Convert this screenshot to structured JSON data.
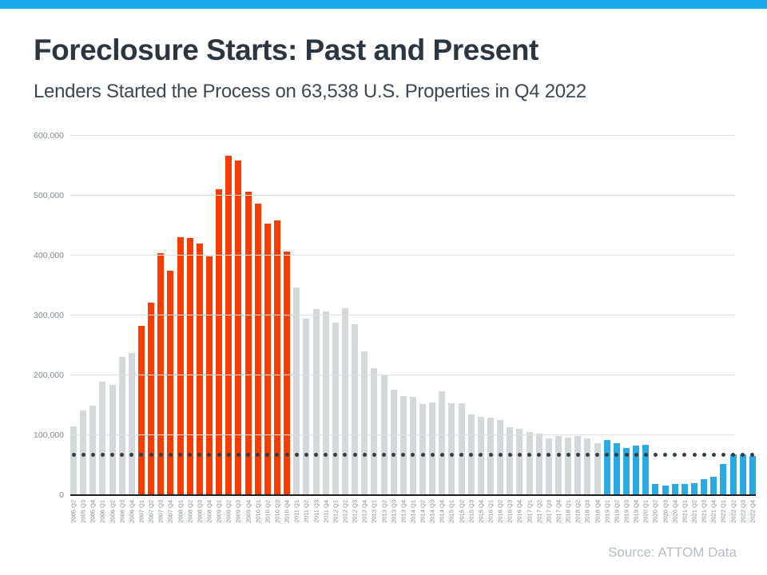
{
  "banner": {
    "color": "#17aae8"
  },
  "header": {
    "title": "Foreclosure Starts: Past and Present",
    "subtitle": "Lenders Started the Process on 63,538 U.S. Properties in Q4 2022"
  },
  "footer": {
    "source": "Source: ATTOM Data"
  },
  "chart_data": {
    "type": "bar",
    "title": "Foreclosure Starts: Past and Present",
    "xlabel": "",
    "ylabel": "",
    "ylim": [
      0,
      600000
    ],
    "grid": true,
    "legend": false,
    "y_ticks": [
      "0",
      "100,000",
      "200,000",
      "300,000",
      "400,000",
      "500,000",
      "600,000"
    ],
    "categories": [
      "2005 Q2",
      "2005 Q3",
      "2005 Q4",
      "2006 Q1",
      "2006 Q2",
      "2006 Q3",
      "2006 Q4",
      "2007 Q1",
      "2007 Q2",
      "2007 Q3",
      "2007 Q4",
      "2008 Q1",
      "2008 Q2",
      "2008 Q3",
      "2008 Q4",
      "2009 Q1",
      "2009 Q2",
      "2009 Q3",
      "2009 Q4",
      "2010 Q1",
      "2010 Q2",
      "2010 Q3",
      "2010 Q4",
      "2011 Q1",
      "2011 Q2",
      "2011 Q3",
      "2011 Q4",
      "2012 Q1",
      "2012 Q2",
      "2012 Q3",
      "2012 Q4",
      "2013 Q1",
      "2013 Q2",
      "2013 Q3",
      "2013 Q4",
      "2014 Q1",
      "2014 Q2",
      "2014 Q3",
      "2014 Q4",
      "2015 Q1",
      "2015 Q2",
      "2015 Q3",
      "2015 Q4",
      "2016 Q1",
      "2016 Q2",
      "2016 Q3",
      "2016 Q4",
      "2017 Q1",
      "2017 Q2",
      "2017 Q3",
      "2017 Q4",
      "2018 Q1",
      "2018 Q2",
      "2018 Q3",
      "2018 Q4",
      "2019 Q1",
      "2019 Q2",
      "2019 Q3",
      "2019 Q4",
      "2020 Q1",
      "2020 Q2",
      "2020 Q3",
      "2020 Q4",
      "2021 Q1",
      "2021 Q2",
      "2021 Q3",
      "2021 Q4",
      "2022 Q1",
      "2022 Q2",
      "2022 Q3",
      "2022 Q4"
    ],
    "values": [
      113000,
      140000,
      148000,
      188000,
      183000,
      229000,
      236000,
      282000,
      320000,
      403000,
      373000,
      430000,
      428000,
      419000,
      397000,
      510000,
      566000,
      558000,
      506000,
      486000,
      452000,
      457000,
      405000,
      346000,
      294000,
      310000,
      305000,
      287000,
      311000,
      284000,
      239000,
      211000,
      200000,
      175000,
      164000,
      163000,
      151000,
      154000,
      172000,
      152000,
      152000,
      134000,
      130000,
      128000,
      124000,
      112000,
      110000,
      104000,
      101000,
      94000,
      97000,
      95000,
      98000,
      93000,
      86000,
      91000,
      85000,
      78000,
      81000,
      83000,
      18000,
      15000,
      17000,
      17000,
      19000,
      26000,
      29000,
      51000,
      67000,
      67000,
      63538
    ],
    "segments": [
      {
        "start": 0,
        "end": 6,
        "color": "gray"
      },
      {
        "start": 7,
        "end": 22,
        "color": "red"
      },
      {
        "start": 23,
        "end": 54,
        "color": "gray"
      },
      {
        "start": 55,
        "end": 70,
        "color": "blue"
      }
    ],
    "colors": {
      "gray": "#d3d8da",
      "red": "#f93d00",
      "blue": "#29abe2"
    },
    "reference_line": {
      "style": "dotted",
      "value": 66500,
      "color": "#343e47"
    }
  }
}
